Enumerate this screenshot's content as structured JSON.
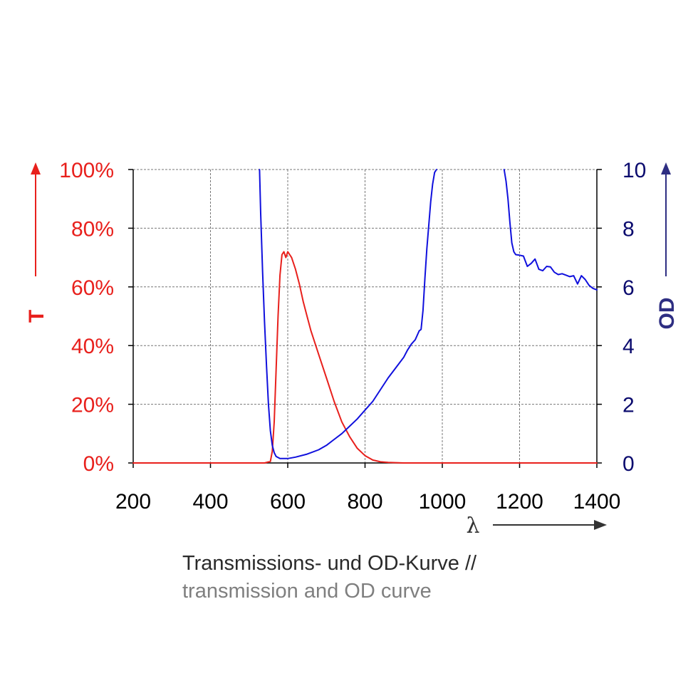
{
  "colors": {
    "transmission": "#e8201c",
    "od": "#1010dd",
    "od_axis_text": "#0b0b6e",
    "od_arrow": "#2e2e82",
    "grid": "#777777",
    "caption_de": "#2a2a2a",
    "caption_en": "#7f7f7f",
    "lambda_arrow": "#333333"
  },
  "caption": {
    "de": "Transmissions- und OD-Kurve //",
    "en": "transmission and OD curve"
  },
  "chart_data": {
    "type": "line",
    "xlabel": "λ",
    "y_left_label": "T",
    "y_right_label": "OD",
    "xlim": [
      200,
      1400
    ],
    "ylim_left": [
      0,
      100
    ],
    "ylim_right": [
      0,
      10
    ],
    "x_ticks": [
      "200",
      "400",
      "600",
      "800",
      "1000",
      "1200",
      "1400"
    ],
    "y_left_ticks": [
      "0%",
      "20%",
      "40%",
      "60%",
      "80%",
      "100%"
    ],
    "y_right_ticks": [
      "0",
      "2",
      "4",
      "6",
      "8",
      "10"
    ],
    "grid": true,
    "series": [
      {
        "axis": "left",
        "x": [
          200,
          400,
          540,
          555,
          560,
          565,
          570,
          575,
          580,
          585,
          590,
          595,
          600,
          605,
          610,
          620,
          630,
          640,
          650,
          660,
          680,
          700,
          720,
          740,
          760,
          780,
          800,
          820,
          840,
          860,
          880,
          900,
          1000,
          1200,
          1400
        ],
        "y": [
          0,
          0,
          0,
          0.5,
          4,
          14,
          32,
          50,
          64,
          71,
          72,
          70,
          72,
          71,
          70,
          66,
          61,
          55,
          50,
          45,
          37,
          29,
          21,
          14,
          9,
          5,
          2.5,
          1,
          0.4,
          0.2,
          0.1,
          0,
          0,
          0,
          0
        ]
      },
      {
        "axis": "right",
        "x": [
          527,
          530,
          535,
          540,
          545,
          550,
          555,
          560,
          565,
          570,
          580,
          600,
          620,
          650,
          680,
          700,
          720,
          740,
          760,
          780,
          800,
          820,
          840,
          860,
          880,
          900,
          910,
          920,
          930,
          940,
          945,
          950,
          955,
          960,
          965,
          970,
          975,
          980,
          985
        ],
        "y": [
          10,
          8.5,
          6.5,
          4.8,
          3.3,
          2,
          1.1,
          0.6,
          0.35,
          0.22,
          0.15,
          0.15,
          0.2,
          0.3,
          0.45,
          0.6,
          0.8,
          1,
          1.25,
          1.5,
          1.8,
          2.1,
          2.5,
          2.9,
          3.25,
          3.6,
          3.85,
          4.05,
          4.2,
          4.5,
          4.55,
          5.2,
          6.3,
          7.3,
          8.1,
          8.9,
          9.5,
          9.9,
          10
        ]
      },
      {
        "axis": "right",
        "x": [
          1160,
          1165,
          1170,
          1175,
          1180,
          1185,
          1190,
          1200,
          1210,
          1220,
          1230,
          1240,
          1250,
          1260,
          1270,
          1280,
          1290,
          1300,
          1310,
          1320,
          1330,
          1340,
          1350,
          1360,
          1370,
          1380,
          1390,
          1400
        ],
        "y": [
          10,
          9.6,
          9,
          8.2,
          7.5,
          7.2,
          7.1,
          7.08,
          7.05,
          6.7,
          6.8,
          6.95,
          6.6,
          6.55,
          6.7,
          6.68,
          6.5,
          6.42,
          6.45,
          6.4,
          6.35,
          6.38,
          6.1,
          6.38,
          6.25,
          6.05,
          5.95,
          5.9
        ]
      }
    ]
  }
}
